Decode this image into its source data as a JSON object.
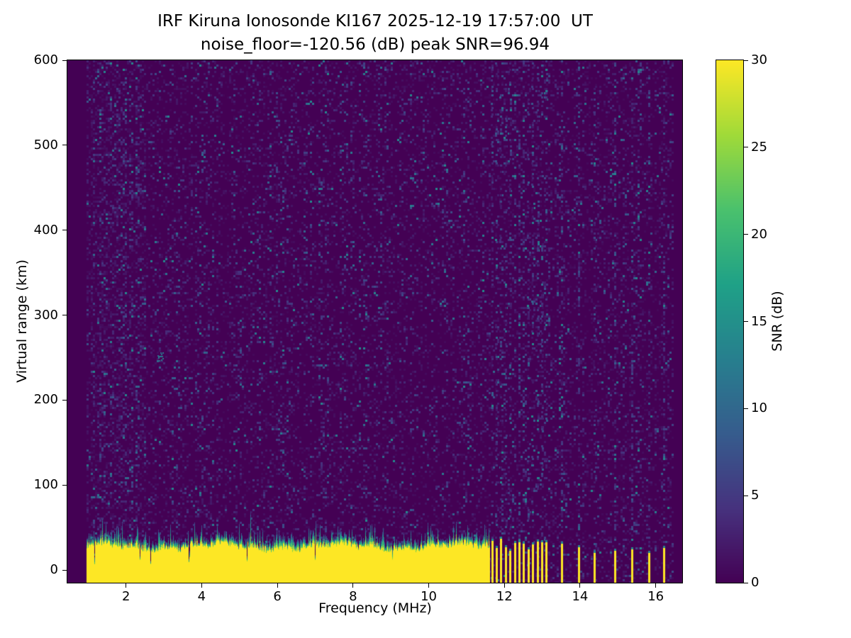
{
  "figure": {
    "background": "#ffffff"
  },
  "chart_data": {
    "type": "heatmap",
    "title": "IRF Kiruna Ionosonde KI167 2025-12-19 17:57:00  UT",
    "subtitle": "noise_floor=-120.56 (dB) peak SNR=96.94",
    "station": "IRF Kiruna Ionosonde KI167",
    "timestamp_ut": "2025-12-19 17:57:00 UT",
    "noise_floor_db": -120.56,
    "peak_snr_db": 96.94,
    "xlabel": "Frequency (MHz)",
    "ylabel": "Virtual range (km)",
    "colorbar_label": "SNR (dB)",
    "xlim": [
      0.45,
      16.7
    ],
    "ylim": [
      -15,
      600
    ],
    "snr_range_db": [
      0,
      30
    ],
    "xticks": [
      2,
      4,
      6,
      8,
      10,
      12,
      14,
      16
    ],
    "yticks": [
      0,
      100,
      200,
      300,
      400,
      500,
      600
    ],
    "colorbar_ticks": [
      0,
      5,
      10,
      15,
      20,
      25,
      30
    ],
    "colormap": "viridis",
    "viridis_stops": [
      "#440154",
      "#46327e",
      "#365c8d",
      "#277f8e",
      "#1fa187",
      "#4ac16d",
      "#a0da39",
      "#fde725"
    ],
    "features": {
      "data_freq_range_mhz": [
        0.95,
        16.45
      ],
      "ground_echo_band": {
        "freq_range_mhz": [
          0.95,
          11.62
        ],
        "top_km_mean": 28,
        "top_km_jitter": 8,
        "fringe_extra_km": 14,
        "snr_db": 30
      },
      "comb_stripes": {
        "freq_range_mhz": [
          11.65,
          13.15
        ],
        "spacing_mhz": 0.12,
        "width_mhz": 0.05,
        "top_km_min": 22,
        "top_km_max": 40,
        "snr_db": 30
      },
      "sparse_stripes": {
        "freqs_mhz": [
          13.5,
          13.95,
          14.35,
          14.9,
          15.35,
          15.8,
          16.2
        ],
        "width_mhz": 0.05,
        "top_km_min": 20,
        "top_km_max": 32,
        "snr_db": 30
      },
      "background_noise": {
        "base_db": 0,
        "speckle_max_db": 14,
        "low_freq_boost_below_mhz": 2.5
      },
      "echo_blob": {
        "freq_mhz": 2.9,
        "range_km": 252,
        "snr_db": 14
      }
    }
  }
}
